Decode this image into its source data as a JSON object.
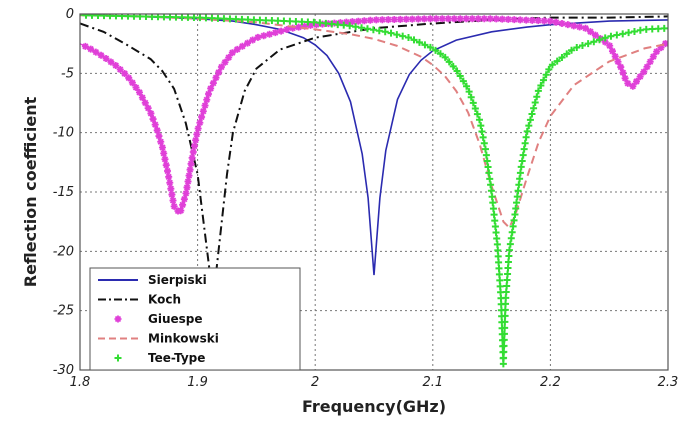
{
  "chart_data": {
    "type": "line",
    "xlabel": "Frequency(GHz)",
    "ylabel": "Reflection coefficient",
    "xlim": [
      1.8,
      2.3
    ],
    "ylim": [
      -30,
      0
    ],
    "xticks": [
      "1.8",
      "1.9",
      "2",
      "2.1",
      "2.2",
      "2.3"
    ],
    "yticks": [
      "0",
      "-5",
      "-10",
      "-15",
      "-20",
      "-25",
      "-30"
    ],
    "grid": "dotted",
    "legend_position": "bottom-left",
    "series": [
      {
        "name": "Sierpiski",
        "color": "#2b2bb0",
        "style": "solid",
        "marker": "none",
        "x": [
          1.8,
          1.85,
          1.9,
          1.93,
          1.95,
          1.97,
          1.99,
          2.0,
          2.01,
          2.02,
          2.03,
          2.04,
          2.045,
          2.05,
          2.055,
          2.06,
          2.07,
          2.08,
          2.09,
          2.1,
          2.12,
          2.15,
          2.18,
          2.2,
          2.25,
          2.3
        ],
        "y": [
          -0.1,
          -0.2,
          -0.4,
          -0.6,
          -0.9,
          -1.3,
          -2.0,
          -2.6,
          -3.5,
          -5.0,
          -7.4,
          -11.8,
          -15.5,
          -22.0,
          -15.5,
          -11.5,
          -7.2,
          -5.1,
          -3.9,
          -3.1,
          -2.2,
          -1.5,
          -1.1,
          -0.9,
          -0.6,
          -0.5
        ]
      },
      {
        "name": "Koch",
        "color": "#111111",
        "style": "dashdot",
        "marker": "none",
        "x": [
          1.8,
          1.82,
          1.84,
          1.86,
          1.87,
          1.88,
          1.89,
          1.9,
          1.905,
          1.91,
          1.915,
          1.92,
          1.925,
          1.93,
          1.94,
          1.95,
          1.97,
          2.0,
          2.05,
          2.1,
          2.15,
          2.2,
          2.25,
          2.3
        ],
        "y": [
          -0.8,
          -1.5,
          -2.6,
          -3.8,
          -4.8,
          -6.3,
          -9.2,
          -13.5,
          -17.5,
          -21.5,
          -22.5,
          -18.0,
          -13.5,
          -10.0,
          -6.5,
          -4.6,
          -3.0,
          -2.0,
          -1.2,
          -0.8,
          -0.5,
          -0.3,
          -0.3,
          -0.2
        ]
      },
      {
        "name": "Giuespe",
        "color": "#e040d8",
        "style": "markers",
        "marker": "star",
        "x": [
          1.8,
          1.81,
          1.82,
          1.83,
          1.84,
          1.85,
          1.86,
          1.865,
          1.87,
          1.875,
          1.88,
          1.885,
          1.89,
          1.895,
          1.9,
          1.91,
          1.92,
          1.93,
          1.95,
          1.98,
          2.0,
          2.05,
          2.1,
          2.15,
          2.2,
          2.23,
          2.25,
          2.26,
          2.265,
          2.27,
          2.28,
          2.29,
          2.3
        ],
        "y": [
          -2.5,
          -3.0,
          -3.6,
          -4.3,
          -5.2,
          -6.5,
          -8.3,
          -9.6,
          -11.2,
          -13.5,
          -16.2,
          -16.8,
          -15.2,
          -12.3,
          -9.8,
          -6.5,
          -4.5,
          -3.2,
          -2.0,
          -1.2,
          -0.9,
          -0.5,
          -0.4,
          -0.4,
          -0.6,
          -1.2,
          -2.6,
          -4.5,
          -5.8,
          -6.1,
          -4.8,
          -3.2,
          -2.3
        ]
      },
      {
        "name": "Minkowski",
        "color": "#e08080",
        "style": "dashed",
        "marker": "none",
        "x": [
          1.8,
          1.85,
          1.9,
          1.95,
          2.0,
          2.03,
          2.05,
          2.07,
          2.09,
          2.1,
          2.11,
          2.12,
          2.13,
          2.14,
          2.15,
          2.16,
          2.165,
          2.17,
          2.18,
          2.19,
          2.2,
          2.22,
          2.25,
          2.28,
          2.3
        ],
        "y": [
          -0.1,
          -0.2,
          -0.4,
          -0.7,
          -1.3,
          -1.7,
          -2.1,
          -2.7,
          -3.6,
          -4.3,
          -5.2,
          -6.5,
          -8.3,
          -11.0,
          -14.5,
          -17.5,
          -18.0,
          -17.0,
          -13.8,
          -10.8,
          -8.6,
          -6.0,
          -4.0,
          -2.9,
          -2.5
        ]
      },
      {
        "name": "Tee-Type",
        "color": "#33dd33",
        "style": "markers",
        "marker": "plus",
        "x": [
          1.8,
          1.85,
          1.9,
          1.95,
          2.0,
          2.03,
          2.06,
          2.08,
          2.1,
          2.11,
          2.12,
          2.13,
          2.14,
          2.145,
          2.15,
          2.155,
          2.158,
          2.16,
          2.162,
          2.165,
          2.17,
          2.175,
          2.18,
          2.19,
          2.2,
          2.22,
          2.25,
          2.28,
          2.3
        ],
        "y": [
          -0.1,
          -0.2,
          -0.3,
          -0.5,
          -0.7,
          -1.0,
          -1.5,
          -2.0,
          -2.9,
          -3.6,
          -4.7,
          -6.3,
          -9.0,
          -11.5,
          -15.0,
          -19.5,
          -24.0,
          -29.5,
          -24.0,
          -20.0,
          -16.8,
          -13.0,
          -10.0,
          -6.4,
          -4.4,
          -2.9,
          -1.9,
          -1.3,
          -1.2
        ]
      }
    ]
  }
}
